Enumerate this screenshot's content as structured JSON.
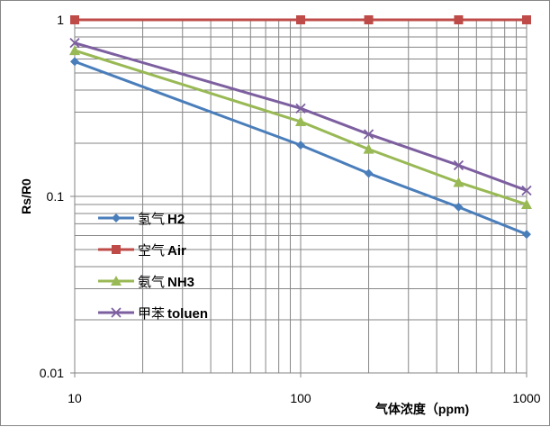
{
  "chart_data": {
    "type": "line",
    "xscale": "log",
    "yscale": "log",
    "xlim": [
      10,
      1000
    ],
    "ylim": [
      0.01,
      1
    ],
    "xlabel": "气体浓度（ppm)",
    "ylabel": "Rs/R0",
    "x_ticks": [
      10,
      100,
      1000
    ],
    "x_tick_labels": [
      "10",
      "100",
      "1000"
    ],
    "y_ticks": [
      0.01,
      0.1,
      1
    ],
    "y_tick_labels": [
      "0.01",
      "0.1",
      "1"
    ],
    "grid": true,
    "legend_position": "lower-left",
    "x": [
      10,
      100,
      200,
      500,
      1000
    ],
    "series": [
      {
        "name_cn": "氢气",
        "name": "H2",
        "values": [
          0.58,
          0.195,
          0.135,
          0.087,
          0.061
        ],
        "color": "#4a7ebb",
        "marker": "diamond"
      },
      {
        "name_cn": "空气",
        "name": "Air",
        "values": [
          1,
          1,
          1,
          1,
          1
        ],
        "color": "#be4b48",
        "marker": "square"
      },
      {
        "name_cn": "氨气",
        "name": "NH3",
        "values": [
          0.67,
          0.265,
          0.185,
          0.12,
          0.09
        ],
        "color": "#98b954",
        "marker": "triangle"
      },
      {
        "name_cn": "甲苯",
        "name": "toluen",
        "values": [
          0.74,
          0.315,
          0.225,
          0.15,
          0.108
        ],
        "color": "#7d5fa0",
        "marker": "x"
      }
    ]
  }
}
